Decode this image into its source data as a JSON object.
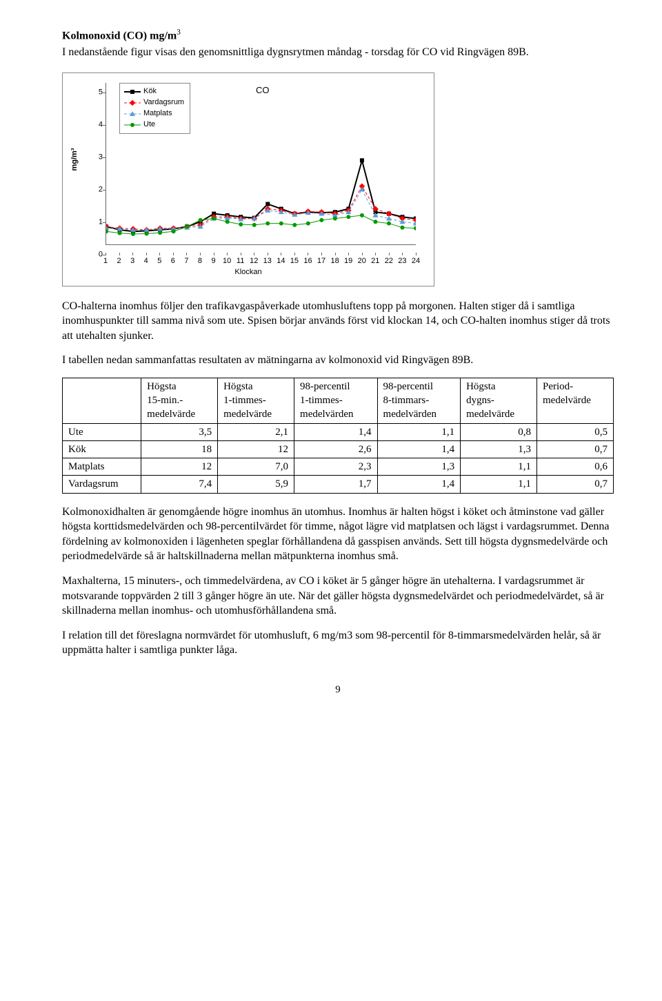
{
  "title_main": "Kolmonoxid (CO) mg/m",
  "title_sup": "3",
  "intro": "I nedanstående figur visas den genomsnittliga dygnsrytmen måndag - torsdag för CO vid Ringvägen 89B.",
  "chart": {
    "title": "CO",
    "xlabel": "Klockan",
    "ylabel": "mg/m³",
    "ymin": 0,
    "ymax": 5,
    "ystep": 1,
    "x": [
      1,
      2,
      3,
      4,
      5,
      6,
      7,
      8,
      9,
      10,
      11,
      12,
      13,
      14,
      15,
      16,
      17,
      18,
      19,
      20,
      21,
      22,
      23,
      24
    ],
    "series": [
      {
        "name": "Kök",
        "color": "#000000",
        "marker": "square",
        "dash": "none",
        "width": 2,
        "y": [
          0.55,
          0.45,
          0.4,
          0.42,
          0.45,
          0.48,
          0.55,
          0.7,
          0.95,
          0.9,
          0.85,
          0.82,
          1.25,
          1.1,
          0.95,
          1.0,
          0.98,
          1.0,
          1.1,
          2.6,
          1.0,
          0.95,
          0.85,
          0.8
        ]
      },
      {
        "name": "Vardagsrum",
        "color": "#ff0000",
        "marker": "diamond",
        "dash": "4,3",
        "width": 1,
        "y": [
          0.55,
          0.5,
          0.48,
          0.45,
          0.5,
          0.5,
          0.55,
          0.6,
          0.85,
          0.85,
          0.8,
          0.8,
          1.1,
          1.05,
          0.95,
          1.02,
          1.0,
          0.95,
          1.05,
          1.8,
          1.1,
          0.95,
          0.8,
          0.75
        ]
      },
      {
        "name": "Matplats",
        "color": "#5b9bd5",
        "marker": "triangle",
        "dash": "4,3",
        "width": 1,
        "y": [
          0.5,
          0.48,
          0.45,
          0.45,
          0.48,
          0.48,
          0.52,
          0.55,
          0.8,
          0.82,
          0.78,
          0.8,
          1.05,
          1.0,
          0.92,
          0.98,
          0.95,
          0.9,
          1.0,
          1.7,
          0.9,
          0.8,
          0.7,
          0.65
        ]
      },
      {
        "name": "Ute",
        "color": "#009900",
        "marker": "circle",
        "dash": "none",
        "width": 1,
        "y": [
          0.4,
          0.35,
          0.32,
          0.33,
          0.36,
          0.4,
          0.55,
          0.75,
          0.8,
          0.7,
          0.62,
          0.6,
          0.65,
          0.65,
          0.6,
          0.65,
          0.75,
          0.8,
          0.85,
          0.9,
          0.7,
          0.65,
          0.52,
          0.5
        ]
      }
    ]
  },
  "para2": "CO-halterna inomhus följer den trafikavgaspåverkade utomhusluftens topp på morgonen. Halten stiger då i samtliga inomhuspunkter till samma nivå som ute. Spisen börjar används först vid klockan 14, och CO-halten inomhus stiger då trots att utehalten sjunker.",
  "para3": "I tabellen nedan sammanfattas resultaten av mätningarna av kolmonoxid vid Ringvägen 89B.",
  "table": {
    "headers": [
      "",
      "Högsta\n15-min.-\nmedelvärde",
      "Högsta\n1-timmes-\nmedelvärde",
      "98-percentil\n1-timmes-\nmedelvärden",
      "98-percentil\n8-timmars-\nmedelvärden",
      "Högsta\ndygns-\nmedelvärde",
      "Period-\nmedelvärde"
    ],
    "rows": [
      {
        "label": "Ute",
        "cells": [
          "3,5",
          "2,1",
          "1,4",
          "1,1",
          "0,8",
          "0,5"
        ]
      },
      {
        "label": "Kök",
        "cells": [
          "18",
          "12",
          "2,6",
          "1,4",
          "1,3",
          "0,7"
        ]
      },
      {
        "label": "Matplats",
        "cells": [
          "12",
          "7,0",
          "2,3",
          "1,3",
          "1,1",
          "0,6"
        ]
      },
      {
        "label": "Vardagsrum",
        "cells": [
          "7,4",
          "5,9",
          "1,7",
          "1,4",
          "1,1",
          "0,7"
        ]
      }
    ]
  },
  "para4": "Kolmonoxidhalten är genomgående högre inomhus än utomhus. Inomhus är halten högst i köket och åtminstone vad gäller högsta korttidsmedelvärden och 98-percentilvärdet för timme, något lägre vid matplatsen och lägst i vardagsrummet. Denna fördelning av kolmonoxiden i lägenheten speglar förhållandena då gasspisen används. Sett till högsta dygnsmedelvärde och periodmedelvärde så är haltskillnaderna mellan mätpunkterna inomhus små.",
  "para5": "Maxhalterna, 15 minuters-, och timmedelvärdena, av CO i köket är 5 gånger högre än utehalterna. I vardagsrummet är motsvarande toppvärden 2 till 3 gånger högre än ute. När det gäller högsta dygnsmedelvärdet och periodmedelvärdet, så är skillnaderna mellan inomhus- och utomhusförhållandena små.",
  "para6": "I relation till det föreslagna normvärdet för utomhusluft, 6 mg/m3 som 98-percentil för 8-timmarsmedelvärden helår, så är uppmätta halter i samtliga punkter låga.",
  "page_number": "9"
}
